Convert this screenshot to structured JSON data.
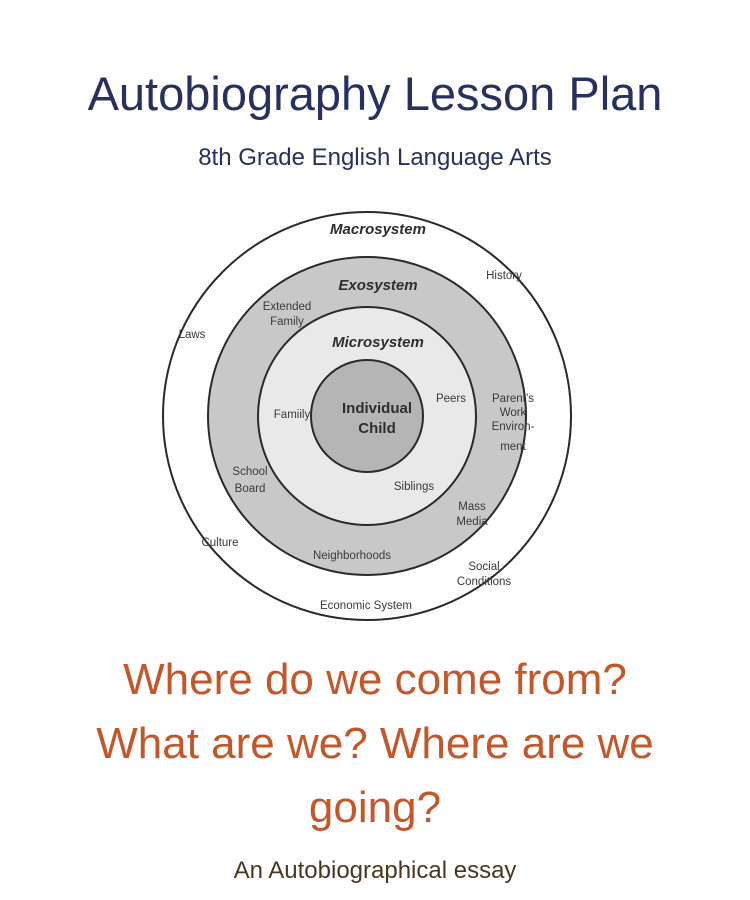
{
  "header": {
    "title": "Autobiography Lesson Plan",
    "subtitle": "8th Grade English Language Arts"
  },
  "diagram": {
    "rings": {
      "macrosystem": "Macrosystem",
      "exosystem": "Exosystem",
      "microsystem": "Microsystem",
      "core_line1": "Individual",
      "core_line2": "Child"
    },
    "macro_labels": {
      "history": "History",
      "laws": "Laws",
      "culture": "Culture",
      "economic": "Economic System",
      "social1": "Social",
      "social2": "Conditions"
    },
    "exo_labels": {
      "extended1": "Extended",
      "extended2": "Family",
      "parents1": "Parent’s",
      "parents2": "Work",
      "parents3": "Environ-",
      "parents4": "ment",
      "school1": "School",
      "school2": "Board",
      "mass1": "Mass",
      "mass2": "Media",
      "neighborhoods": "Neighborhoods"
    },
    "micro_labels": {
      "family": "Famiily",
      "peers": "Peers",
      "siblings": "Siblings"
    },
    "colors": {
      "outer_fill": "#ffffff",
      "exo_fill": "#c8c8c8",
      "micro_fill": "#e9e9e9",
      "core_fill": "#b5b5b5",
      "stroke": "#2a2a2a"
    }
  },
  "question": {
    "line1": "Where do we come from?",
    "line2": "What are we? Where are we going?"
  },
  "tagline": "An Autobiographical essay",
  "colors": {
    "title": "#27305f",
    "question": "#c4572a",
    "tagline": "#4a3720"
  }
}
